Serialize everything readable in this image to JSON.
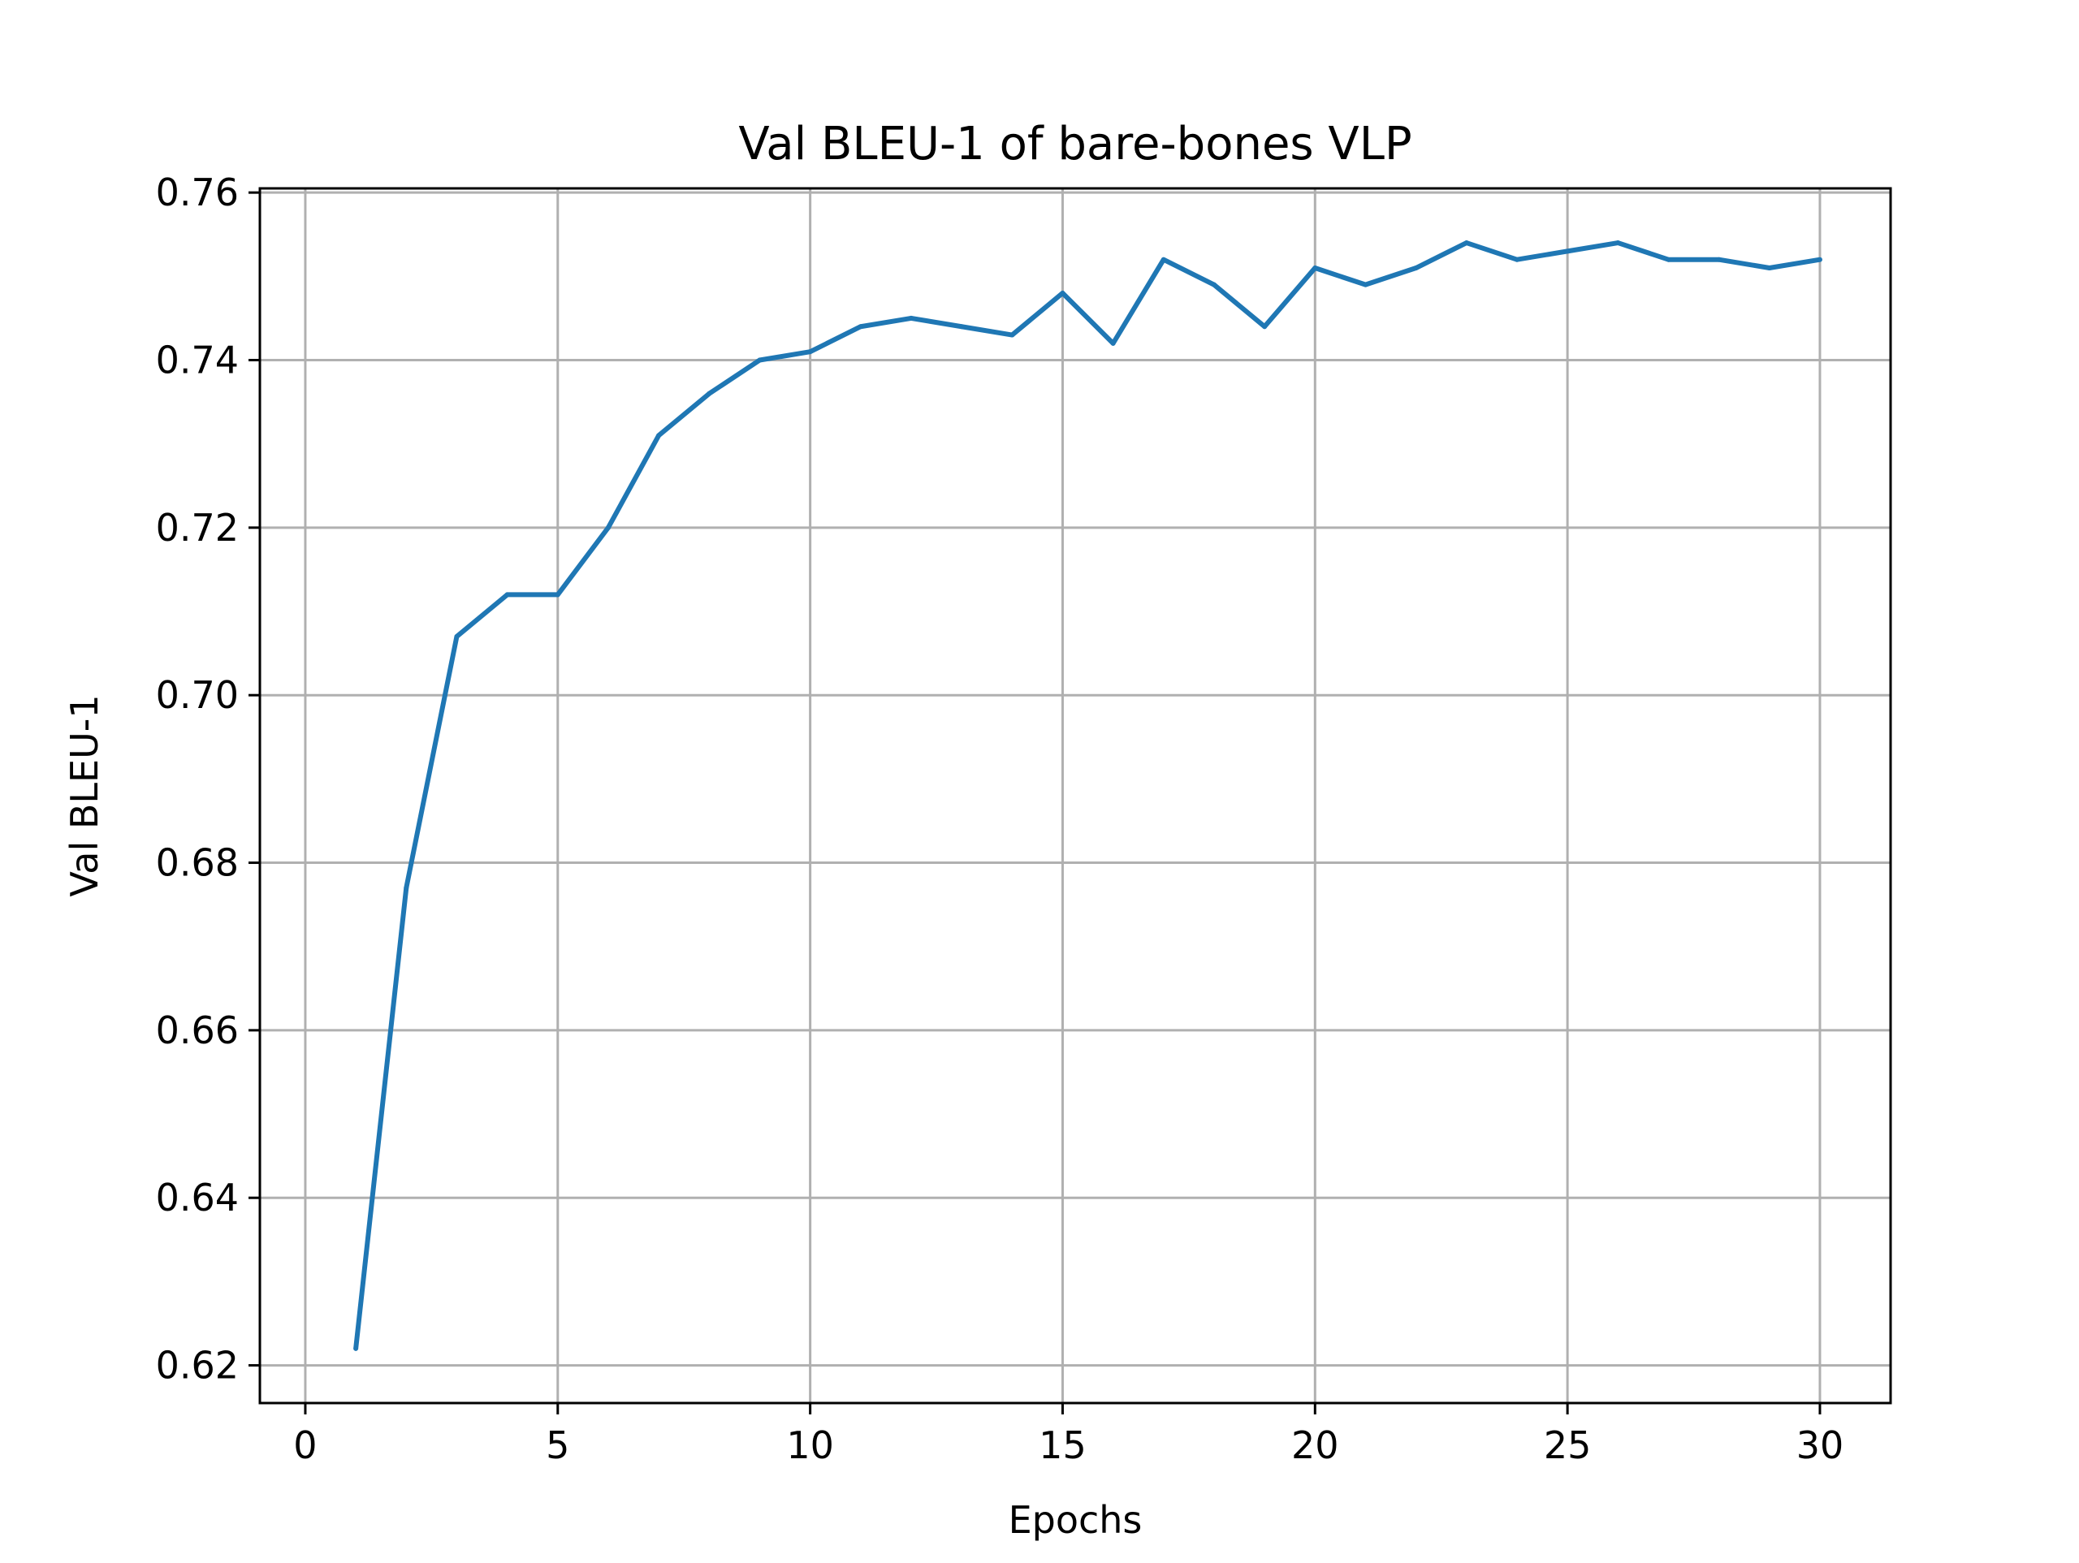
{
  "chart_data": {
    "type": "line",
    "title": "Val BLEU-1 of bare-bones VLP",
    "xlabel": "Epochs",
    "ylabel": "Val BLEU-1",
    "xlim": [
      -0.9,
      31.4
    ],
    "ylim": [
      0.6155,
      0.7605
    ],
    "x_ticks": [
      0,
      5,
      10,
      15,
      20,
      25,
      30
    ],
    "x_tick_labels": [
      "0",
      "5",
      "10",
      "15",
      "20",
      "25",
      "30"
    ],
    "y_ticks": [
      0.62,
      0.64,
      0.66,
      0.68,
      0.7,
      0.72,
      0.74,
      0.76
    ],
    "y_tick_labels": [
      "0.62",
      "0.64",
      "0.66",
      "0.68",
      "0.70",
      "0.72",
      "0.74",
      "0.76"
    ],
    "grid": true,
    "series": [
      {
        "color": "#1f77b4",
        "x": [
          1,
          2,
          3,
          4,
          5,
          6,
          7,
          8,
          9,
          10,
          11,
          12,
          13,
          14,
          15,
          16,
          17,
          18,
          19,
          20,
          21,
          22,
          23,
          24,
          25,
          26,
          27,
          28,
          29,
          30
        ],
        "values": [
          0.622,
          0.677,
          0.707,
          0.712,
          0.712,
          0.72,
          0.731,
          0.736,
          0.74,
          0.741,
          0.744,
          0.745,
          0.744,
          0.743,
          0.748,
          0.742,
          0.752,
          0.749,
          0.744,
          0.751,
          0.749,
          0.751,
          0.754,
          0.752,
          0.753,
          0.754,
          0.752,
          0.752,
          0.751,
          0.752
        ]
      }
    ]
  }
}
